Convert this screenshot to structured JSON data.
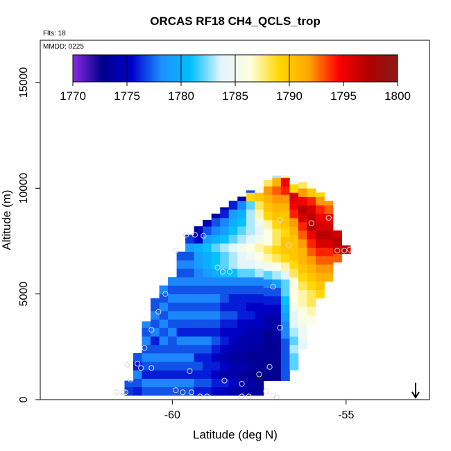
{
  "chart_data": {
    "type": "heatmap",
    "title": "ORCAS RF18 CH4_QCLS_trop",
    "flights_note": "Flts: 18",
    "date_note": "MMDD: 0225",
    "xlabel": "Latitude (deg N)",
    "ylabel": "Altitude (m)",
    "xlim": [
      -63.8,
      -52.6
    ],
    "ylim": [
      0,
      17000
    ],
    "xticks": [
      -60,
      -55
    ],
    "xtick_labels": [
      "-60",
      "-55"
    ],
    "yticks": [
      0,
      5000,
      10000,
      15000
    ],
    "ytick_labels": [
      "0",
      "5000",
      "10000",
      "15000"
    ],
    "colorbar": {
      "min": 1770,
      "max": 1800,
      "ticks": [
        1770,
        1775,
        1780,
        1785,
        1790,
        1795,
        1800
      ],
      "tick_labels": [
        "1770",
        "1775",
        "1780",
        "1785",
        "1790",
        "1795",
        "1800"
      ],
      "colors": [
        "#8a2be2",
        "#00008b",
        "#0000cd",
        "#1e90ff",
        "#00bfff",
        "#e0f4ff",
        "#ffffe0",
        "#ffd700",
        "#ffa500",
        "#ff0000",
        "#b00000",
        "#8b1a1a"
      ]
    },
    "grid": false,
    "cell_size": {
      "dlat": 0.25,
      "dalt": 400
    },
    "columns": [
      {
        "lat": -61.25,
        "bottom": 200,
        "top": 900,
        "values": [
          1776.5,
          1777
        ]
      },
      {
        "lat": -61.0,
        "bottom": 200,
        "top": 2200,
        "values": [
          1776,
          1777,
          1778,
          1776,
          1777
        ]
      },
      {
        "lat": -60.75,
        "bottom": 200,
        "top": 3700,
        "values": [
          1777,
          1778,
          1776,
          1777,
          1778,
          1777,
          1778,
          1777,
          1778
        ]
      },
      {
        "lat": -60.5,
        "bottom": 200,
        "top": 4800,
        "values": [
          1777,
          1778,
          1776,
          1777,
          1778,
          1777,
          1776,
          1778,
          1777,
          1778,
          1777,
          1777
        ]
      },
      {
        "lat": -60.25,
        "bottom": 200,
        "top": 5500,
        "values": [
          1777,
          1778,
          1776,
          1777,
          1778,
          1777,
          1778,
          1777,
          1778,
          1777,
          1778,
          1777,
          1778
        ]
      },
      {
        "lat": -60.0,
        "bottom": 200,
        "top": 6000,
        "values": [
          1777,
          1778,
          1776,
          1777,
          1778,
          1777,
          1777,
          1778,
          1777,
          1778,
          1777,
          1778,
          1777,
          1778
        ]
      },
      {
        "lat": -59.75,
        "bottom": 200,
        "top": 7300,
        "values": [
          1777,
          1778,
          1776,
          1777,
          1778,
          1777,
          1778,
          1776,
          1777,
          1778,
          1777,
          1778,
          1777,
          1778,
          1777,
          1778,
          1777
        ]
      },
      {
        "lat": -59.5,
        "bottom": 200,
        "top": 8000,
        "values": [
          1777,
          1778,
          1776,
          1777,
          1778,
          1777,
          1778,
          1776,
          1777,
          1778,
          1777,
          1778,
          1777,
          1778,
          1777,
          1778,
          1777,
          1779,
          1776.5
        ]
      },
      {
        "lat": -59.25,
        "bottom": 200,
        "top": 8200,
        "values": [
          1776,
          1777,
          1776,
          1777,
          1776,
          1777,
          1778,
          1776,
          1777,
          1778,
          1777,
          1778,
          1777,
          1778,
          1778,
          1779,
          1779,
          1780,
          1775.5,
          1774.5
        ]
      },
      {
        "lat": -59.0,
        "bottom": 200,
        "top": 8500,
        "values": [
          1776,
          1777,
          1776,
          1776,
          1776,
          1777,
          1778,
          1776,
          1777,
          1778,
          1777,
          1778,
          1777,
          1778,
          1779,
          1780,
          1780,
          1781,
          1779,
          1777,
          1774.5
        ]
      },
      {
        "lat": -58.75,
        "bottom": 200,
        "top": 8800,
        "values": [
          1775,
          1776,
          1775,
          1776,
          1775,
          1776,
          1777,
          1776,
          1777,
          1778,
          1777,
          1778,
          1777,
          1778,
          1780,
          1781,
          1781,
          1782,
          1780,
          1778,
          1777,
          1774
        ]
      },
      {
        "lat": -58.5,
        "bottom": 200,
        "top": 9100,
        "values": [
          1775,
          1776,
          1774,
          1775,
          1774,
          1775,
          1776,
          1775,
          1776,
          1777,
          1776,
          1777,
          1777,
          1778,
          1781,
          1782,
          1782,
          1783,
          1781,
          1779,
          1778,
          1776,
          1774
        ]
      },
      {
        "lat": -58.25,
        "bottom": 200,
        "top": 9400,
        "values": [
          1774,
          1775,
          1774,
          1774,
          1773.5,
          1774,
          1775,
          1775,
          1776,
          1777,
          1776,
          1776,
          1777,
          1778,
          1781,
          1783,
          1783,
          1784,
          1782,
          1781,
          1780,
          1779,
          1776,
          1773
        ]
      },
      {
        "lat": -58.0,
        "bottom": 200,
        "top": 9600,
        "values": [
          1774,
          1774,
          1773.5,
          1774,
          1773.5,
          1774,
          1774,
          1775,
          1775,
          1776,
          1776,
          1776,
          1777,
          1778,
          1782,
          1784,
          1784,
          1785,
          1783,
          1782,
          1781,
          1780,
          1778,
          1774,
          1772
        ]
      },
      {
        "lat": -57.75,
        "bottom": 200,
        "top": 9900,
        "values": [
          1773.5,
          1774,
          1773,
          1773.5,
          1773,
          1773.5,
          1774,
          1774,
          1775,
          1776,
          1775,
          1776,
          1777,
          1778,
          1782,
          1784,
          1785,
          1786,
          1784,
          1783,
          1783,
          1783,
          1782,
          1789,
          1777,
          1771
        ]
      },
      {
        "lat": -57.5,
        "bottom": 200,
        "top": 10100,
        "values": [
          1773.5,
          1773,
          1773,
          1773,
          1773,
          1773.5,
          1774,
          1774,
          1775,
          1775,
          1775,
          1776,
          1777,
          1778,
          1783,
          1785,
          1786,
          1787,
          1785,
          1784,
          1785,
          1787,
          1788,
          1790,
          1786,
          1778,
          1773
        ]
      },
      {
        "lat": -57.25,
        "bottom": 900,
        "top": 10400,
        "values": [
          1773,
          1773,
          1773,
          1773,
          1773,
          1773,
          1774,
          1774,
          1775,
          1776,
          1777,
          1778,
          1782,
          1785,
          1787,
          1788,
          1786,
          1786,
          1787,
          1789,
          1790,
          1791,
          1792,
          1788,
          1780,
          1775
        ]
      },
      {
        "lat": -57.0,
        "bottom": 900,
        "top": 10600,
        "values": [
          1773,
          1773,
          1773,
          1773,
          1773,
          1773.5,
          1774,
          1774,
          1775,
          1776,
          1777,
          1779,
          1783,
          1786,
          1788,
          1789,
          1788,
          1788,
          1789,
          1790,
          1791,
          1792,
          1793,
          1791,
          1783,
          1776
        ]
      },
      {
        "lat": -56.75,
        "bottom": 900,
        "top": 10600,
        "values": [
          1777,
          1777,
          1777,
          1777,
          1777,
          1778,
          1778,
          1779,
          1780,
          1781,
          1782,
          1782,
          1784,
          1787,
          1789,
          1790,
          1790,
          1789,
          1790,
          1790,
          1791,
          1792,
          1794,
          1795,
          1787,
          1778
        ]
      },
      {
        "lat": -56.5,
        "bottom": 1400,
        "top": 10400,
        "values": [
          1782,
          1782,
          1783,
          1782,
          1783,
          1784,
          1784,
          1785,
          1786,
          1786,
          1786,
          1788,
          1789,
          1790,
          1790,
          1790,
          1791,
          1792,
          1794,
          1795,
          1796,
          1789,
          1785
        ]
      },
      {
        "lat": -56.25,
        "bottom": 2400,
        "top": 10300,
        "values": [
          1784,
          1785,
          1785,
          1786,
          1786,
          1787,
          1787,
          1788,
          1789,
          1790,
          1791,
          1791,
          1792,
          1793,
          1794,
          1796,
          1797,
          1795,
          1792,
          1788
        ]
      },
      {
        "lat": -56.0,
        "bottom": 3600,
        "top": 10200,
        "values": [
          1786,
          1787,
          1788,
          1788,
          1789,
          1790,
          1791,
          1792,
          1793,
          1794,
          1795,
          1797,
          1797,
          1796,
          1794,
          1790,
          1786
        ]
      },
      {
        "lat": -55.75,
        "bottom": 4800,
        "top": 9800,
        "values": [
          1789,
          1790,
          1791,
          1792,
          1793,
          1794,
          1796,
          1797,
          1796,
          1795,
          1794,
          1792,
          1789
        ]
      },
      {
        "lat": -55.5,
        "bottom": 5600,
        "top": 9400,
        "values": [
          1791,
          1792,
          1793,
          1794,
          1796,
          1797,
          1796,
          1795,
          1793,
          1792
        ]
      },
      {
        "lat": -55.25,
        "bottom": 6500,
        "top": 8000,
        "values": [
          1793,
          1796,
          1797,
          1796
        ]
      },
      {
        "lat": -55.0,
        "bottom": 6900,
        "top": 7300,
        "values": [
          1797
        ]
      }
    ],
    "flight_track": [
      [
        -61.4,
        350
      ],
      [
        -61.2,
        950
      ],
      [
        -61.0,
        1700
      ],
      [
        -60.8,
        2450
      ],
      [
        -60.6,
        3300
      ],
      [
        -60.4,
        4150
      ],
      [
        -60.2,
        5000
      ],
      [
        -59.9,
        7050
      ],
      [
        -59.6,
        7800
      ],
      [
        -59.35,
        7800
      ],
      [
        -59.1,
        7750
      ],
      [
        -58.7,
        6250
      ],
      [
        -58.55,
        6050
      ],
      [
        -58.35,
        6050
      ],
      [
        -57.8,
        7900
      ],
      [
        -56.9,
        8500
      ],
      [
        -56.0,
        8350
      ],
      [
        -55.5,
        8600
      ],
      [
        -55.25,
        7050
      ],
      [
        -55.05,
        7050
      ],
      [
        -54.9,
        7100
      ],
      [
        -56.65,
        7300
      ],
      [
        -57.1,
        5350
      ],
      [
        -56.9,
        3400
      ],
      [
        -57.2,
        1550
      ],
      [
        -57.5,
        1200
      ],
      [
        -58.0,
        750
      ],
      [
        -58.5,
        900
      ],
      [
        -59.0,
        150
      ],
      [
        -59.2,
        150
      ],
      [
        -58.0,
        150
      ],
      [
        -57.8,
        150
      ],
      [
        -57.3,
        400
      ],
      [
        -57.1,
        200
      ],
      [
        -57.0,
        100
      ],
      [
        -59.9,
        450
      ],
      [
        -59.7,
        350
      ],
      [
        -59.45,
        350
      ],
      [
        -61.3,
        1650
      ],
      [
        -60.9,
        1500
      ],
      [
        -60.6,
        1500
      ],
      [
        -59.5,
        1350
      ],
      [
        -61.6,
        350
      ],
      [
        -61.35,
        350
      ]
    ],
    "arrow": {
      "lat": -53.0,
      "alt_top": 800,
      "alt_bottom": 100
    }
  }
}
